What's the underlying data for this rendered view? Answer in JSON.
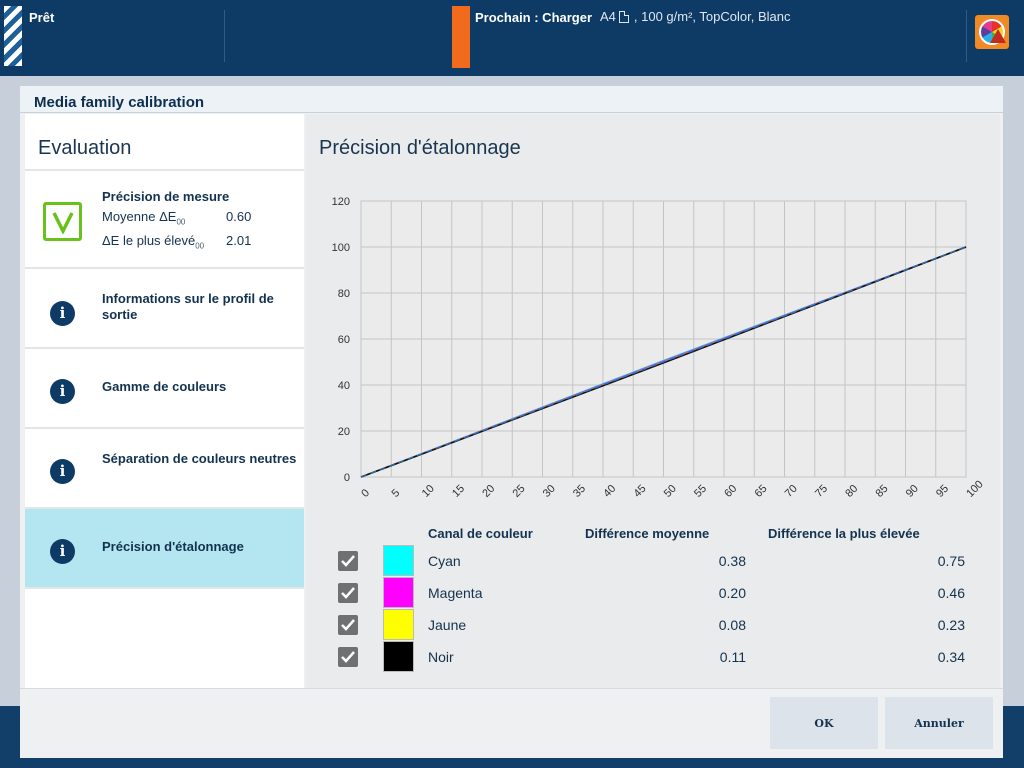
{
  "topbar": {
    "status": "Prêt",
    "next_label": "Prochain : Charger",
    "next_detail": "A4",
    "next_media": ", 100 g/m², TopColor, Blanc"
  },
  "dialog": {
    "title": "Media family calibration",
    "left": {
      "heading": "Evaluation",
      "items": [
        {
          "title": "Précision de mesure",
          "icon": "check-icon",
          "metrics": [
            {
              "label": "Moyenne ΔE",
              "sub": "00",
              "value": "0.60"
            },
            {
              "label": "ΔE le plus élevé",
              "sub": "00",
              "value": "2.01"
            }
          ]
        },
        {
          "title": "Informations sur le profil de sortie",
          "icon": "info-icon"
        },
        {
          "title": "Gamme de couleurs",
          "icon": "info-icon"
        },
        {
          "title": "Séparation de couleurs neutres",
          "icon": "info-icon"
        },
        {
          "title": "Précision d'étalonnage",
          "icon": "info-icon",
          "selected": true
        }
      ]
    },
    "right": {
      "heading": "Précision d'étalonnage",
      "table": {
        "headers": {
          "channel": "Canal de couleur",
          "avg": "Différence moyenne",
          "max": "Différence la plus élevée"
        },
        "rows": [
          {
            "name": "Cyan",
            "color": "#00ffff",
            "avg": "0.38",
            "max": "0.75",
            "checked": true
          },
          {
            "name": "Magenta",
            "color": "#ff00ff",
            "avg": "0.20",
            "max": "0.46",
            "checked": true
          },
          {
            "name": "Jaune",
            "color": "#ffff00",
            "avg": "0.08",
            "max": "0.23",
            "checked": true
          },
          {
            "name": "Noir",
            "color": "#000000",
            "avg": "0.11",
            "max": "0.34",
            "checked": true
          }
        ]
      }
    },
    "buttons": {
      "ok": "OK",
      "cancel": "Annuler"
    }
  },
  "chart_data": {
    "type": "line",
    "title": "",
    "xlabel": "",
    "ylabel": "",
    "xlim": [
      0,
      100
    ],
    "ylim": [
      0,
      120
    ],
    "xticks": [
      "0",
      "5",
      "10",
      "15",
      "20",
      "25",
      "30",
      "35",
      "40",
      "45",
      "50",
      "55",
      "60",
      "65",
      "70",
      "75",
      "80",
      "85",
      "90",
      "95",
      "100"
    ],
    "yticks": [
      "0",
      "20",
      "40",
      "60",
      "80",
      "100",
      "120"
    ],
    "grid": true,
    "series": [
      {
        "color": "#00d8e8",
        "x": [
          0,
          50,
          100
        ],
        "y": [
          0,
          50.6,
          100
        ]
      },
      {
        "color": "#ff00ff",
        "x": [
          0,
          50,
          100
        ],
        "y": [
          0,
          50.2,
          100
        ]
      },
      {
        "color": "#d8c800",
        "x": [
          0,
          50,
          100
        ],
        "y": [
          0,
          49.9,
          100
        ]
      },
      {
        "color": "#111111",
        "x": [
          0,
          50,
          100
        ],
        "y": [
          0,
          49.6,
          100
        ]
      },
      {
        "color": "#1a73c8",
        "x": [
          0,
          100
        ],
        "y": [
          0,
          100
        ],
        "dashed": true
      }
    ]
  }
}
